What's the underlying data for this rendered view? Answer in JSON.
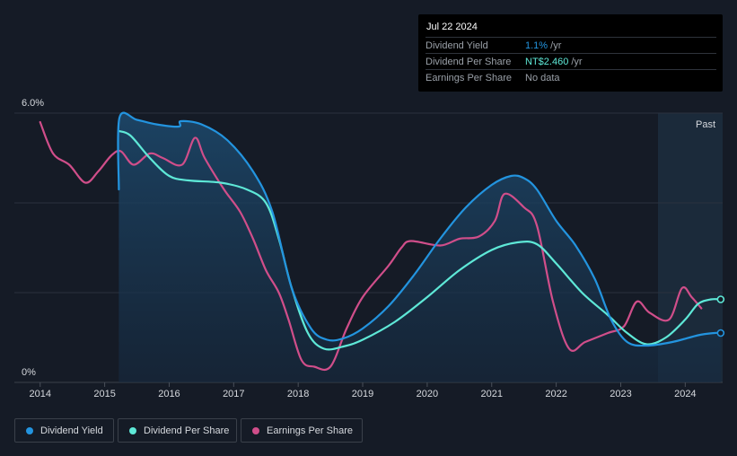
{
  "chart_data": {
    "type": "line",
    "title": "",
    "xlabel": "",
    "ylabel": "",
    "x_ticks": [
      "2014",
      "2015",
      "2016",
      "2017",
      "2018",
      "2019",
      "2020",
      "2021",
      "2022",
      "2023",
      "2024"
    ],
    "y_tick_labels": [
      "6.0%",
      "0%"
    ],
    "ylim": [
      0,
      6.0
    ],
    "xlim": [
      2013.6,
      2024.58
    ],
    "past_label": "Past",
    "series": [
      {
        "name": "Dividend Yield",
        "color": "#2394df",
        "points": [
          [
            2015.22,
            4.3
          ],
          [
            2015.23,
            5.9
          ],
          [
            2015.5,
            5.85
          ],
          [
            2015.8,
            5.75
          ],
          [
            2016.15,
            5.7
          ],
          [
            2016.18,
            5.82
          ],
          [
            2016.5,
            5.75
          ],
          [
            2016.9,
            5.4
          ],
          [
            2017.3,
            4.7
          ],
          [
            2017.6,
            3.8
          ],
          [
            2017.9,
            2.1
          ],
          [
            2018.2,
            1.2
          ],
          [
            2018.45,
            0.95
          ],
          [
            2018.7,
            0.98
          ],
          [
            2019.0,
            1.2
          ],
          [
            2019.4,
            1.7
          ],
          [
            2019.8,
            2.4
          ],
          [
            2020.2,
            3.2
          ],
          [
            2020.6,
            3.9
          ],
          [
            2021.0,
            4.4
          ],
          [
            2021.3,
            4.6
          ],
          [
            2021.5,
            4.55
          ],
          [
            2021.7,
            4.3
          ],
          [
            2022.0,
            3.6
          ],
          [
            2022.3,
            3.05
          ],
          [
            2022.6,
            2.3
          ],
          [
            2022.85,
            1.4
          ],
          [
            2023.1,
            0.9
          ],
          [
            2023.4,
            0.82
          ],
          [
            2023.8,
            0.9
          ],
          [
            2024.2,
            1.05
          ],
          [
            2024.45,
            1.1
          ],
          [
            2024.55,
            1.1
          ]
        ]
      },
      {
        "name": "Dividend Per Share",
        "color": "#5ee8d7",
        "points": [
          [
            2015.22,
            5.6
          ],
          [
            2015.4,
            5.5
          ],
          [
            2015.7,
            5.0
          ],
          [
            2016.0,
            4.6
          ],
          [
            2016.3,
            4.5
          ],
          [
            2016.8,
            4.45
          ],
          [
            2017.2,
            4.3
          ],
          [
            2017.5,
            4.0
          ],
          [
            2017.7,
            3.2
          ],
          [
            2017.9,
            2.1
          ],
          [
            2018.15,
            1.1
          ],
          [
            2018.4,
            0.75
          ],
          [
            2018.7,
            0.8
          ],
          [
            2019.0,
            0.95
          ],
          [
            2019.5,
            1.35
          ],
          [
            2020.0,
            1.9
          ],
          [
            2020.5,
            2.5
          ],
          [
            2021.0,
            2.95
          ],
          [
            2021.4,
            3.12
          ],
          [
            2021.7,
            3.08
          ],
          [
            2022.0,
            2.65
          ],
          [
            2022.4,
            2.0
          ],
          [
            2022.8,
            1.5
          ],
          [
            2023.1,
            1.1
          ],
          [
            2023.4,
            0.85
          ],
          [
            2023.7,
            1.0
          ],
          [
            2024.0,
            1.4
          ],
          [
            2024.2,
            1.75
          ],
          [
            2024.4,
            1.85
          ],
          [
            2024.55,
            1.85
          ]
        ]
      },
      {
        "name": "Earnings Per Share",
        "color": "#d04e8a",
        "points": [
          [
            2014.0,
            5.8
          ],
          [
            2014.2,
            5.1
          ],
          [
            2014.45,
            4.85
          ],
          [
            2014.7,
            4.45
          ],
          [
            2014.9,
            4.7
          ],
          [
            2015.1,
            5.05
          ],
          [
            2015.25,
            5.15
          ],
          [
            2015.45,
            4.85
          ],
          [
            2015.7,
            5.1
          ],
          [
            2015.9,
            5.0
          ],
          [
            2016.2,
            4.85
          ],
          [
            2016.4,
            5.45
          ],
          [
            2016.55,
            5.0
          ],
          [
            2016.85,
            4.3
          ],
          [
            2017.1,
            3.8
          ],
          [
            2017.3,
            3.2
          ],
          [
            2017.5,
            2.5
          ],
          [
            2017.7,
            2.0
          ],
          [
            2017.85,
            1.4
          ],
          [
            2018.05,
            0.5
          ],
          [
            2018.25,
            0.35
          ],
          [
            2018.5,
            0.35
          ],
          [
            2018.75,
            1.2
          ],
          [
            2019.0,
            1.9
          ],
          [
            2019.4,
            2.6
          ],
          [
            2019.6,
            3.0
          ],
          [
            2019.75,
            3.15
          ],
          [
            2020.2,
            3.05
          ],
          [
            2020.5,
            3.2
          ],
          [
            2020.8,
            3.25
          ],
          [
            2021.05,
            3.6
          ],
          [
            2021.2,
            4.2
          ],
          [
            2021.5,
            3.9
          ],
          [
            2021.7,
            3.5
          ],
          [
            2021.95,
            1.8
          ],
          [
            2022.2,
            0.75
          ],
          [
            2022.45,
            0.9
          ],
          [
            2022.8,
            1.1
          ],
          [
            2023.05,
            1.25
          ],
          [
            2023.25,
            1.8
          ],
          [
            2023.45,
            1.55
          ],
          [
            2023.75,
            1.4
          ],
          [
            2023.95,
            2.1
          ],
          [
            2024.1,
            1.9
          ],
          [
            2024.25,
            1.65
          ]
        ]
      }
    ]
  },
  "tooltip": {
    "date": "Jul 22 2024",
    "rows": [
      {
        "label": "Dividend Yield",
        "value": "1.1%",
        "unit": " /yr",
        "color": "#2394df"
      },
      {
        "label": "Dividend Per Share",
        "value": "NT$2.460",
        "unit": " /yr",
        "color": "#5ee8d7"
      },
      {
        "label": "Earnings Per Share",
        "value": "No data",
        "unit": "",
        "color": "#9aa0a8"
      }
    ]
  },
  "legend": {
    "items": [
      {
        "label": "Dividend Yield",
        "color": "#2394df"
      },
      {
        "label": "Dividend Per Share",
        "color": "#5ee8d7"
      },
      {
        "label": "Earnings Per Share",
        "color": "#d04e8a"
      }
    ]
  }
}
